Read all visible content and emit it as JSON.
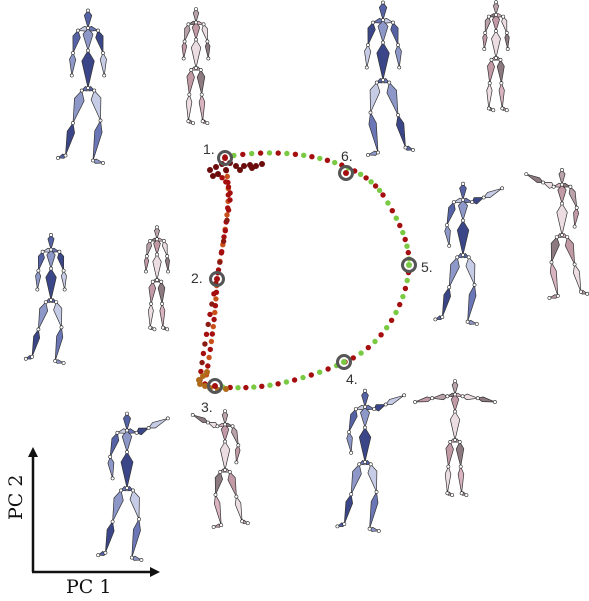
{
  "axes": {
    "x_label": "PC 1",
    "y_label": "PC 2"
  },
  "keyframes": [
    {
      "label": "1."
    },
    {
      "label": "2."
    },
    {
      "label": "3."
    },
    {
      "label": "4."
    },
    {
      "label": "5."
    },
    {
      "label": "6."
    }
  ],
  "colors": {
    "blue_figure": "#5563a6",
    "pink_figure": "#c29aa6",
    "trajectory_green": "#7ac943",
    "trajectory_red": "#a50e0e",
    "trajectory_orange": "#c8501a",
    "marker_ring": "#555555"
  }
}
